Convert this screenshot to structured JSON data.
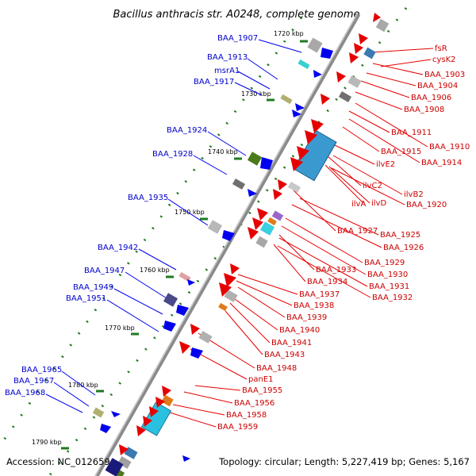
{
  "title": "Bacillus anthracis str. A0248, complete genome",
  "footer": {
    "accession": "Accession: NC_012659",
    "summary": "Topology: circular; Length: 5,227,419 bp; Genes: 5,167"
  },
  "kbp_ticks": [
    "1720 kbp",
    "1730 kbp",
    "1740 kbp",
    "1750 kbp",
    "1760 kbp",
    "1770 kbp",
    "1780 kbp",
    "1790 kbp"
  ],
  "left_labels": [
    "BAA_1907",
    "BAA_1913",
    "msrA1",
    "BAA_1917",
    "BAA_1924",
    "BAA_1928",
    "BAA_1935",
    "BAA_1942",
    "BAA_1947",
    "BAA_1949",
    "BAA_1951",
    "BAA_1965",
    "BAA_1967",
    "BAA_1968"
  ],
  "right_labels": [
    "fsR",
    "cysK2",
    "BAA_1903",
    "BAA_1904",
    "BAA_1906",
    "BAA_1908",
    "BAA_1911",
    "BAA_1910",
    "BAA_1915",
    "BAA_1914",
    "ilvE2",
    "ilvC2",
    "ilvB2",
    "ilvA",
    "ilvD",
    "BAA_1920",
    "BAA_1927",
    "BAA_1925",
    "BAA_1926",
    "BAA_1929",
    "BAA_1930",
    "BAA_1933",
    "BAA_1931",
    "BAA_1934",
    "BAA_1932",
    "BAA_1937",
    "BAA_1938",
    "BAA_1939",
    "BAA_1940",
    "BAA_1941",
    "BAA_1943",
    "BAA_1948",
    "panE1",
    "BAA_1955",
    "BAA_1956",
    "BAA_1958",
    "BAA_1959"
  ],
  "colors": {
    "forward_gene": "#e60000",
    "reverse_gene": "#0000ee",
    "backbone": "#8a8a8a",
    "tick": "#1f7a1f"
  }
}
